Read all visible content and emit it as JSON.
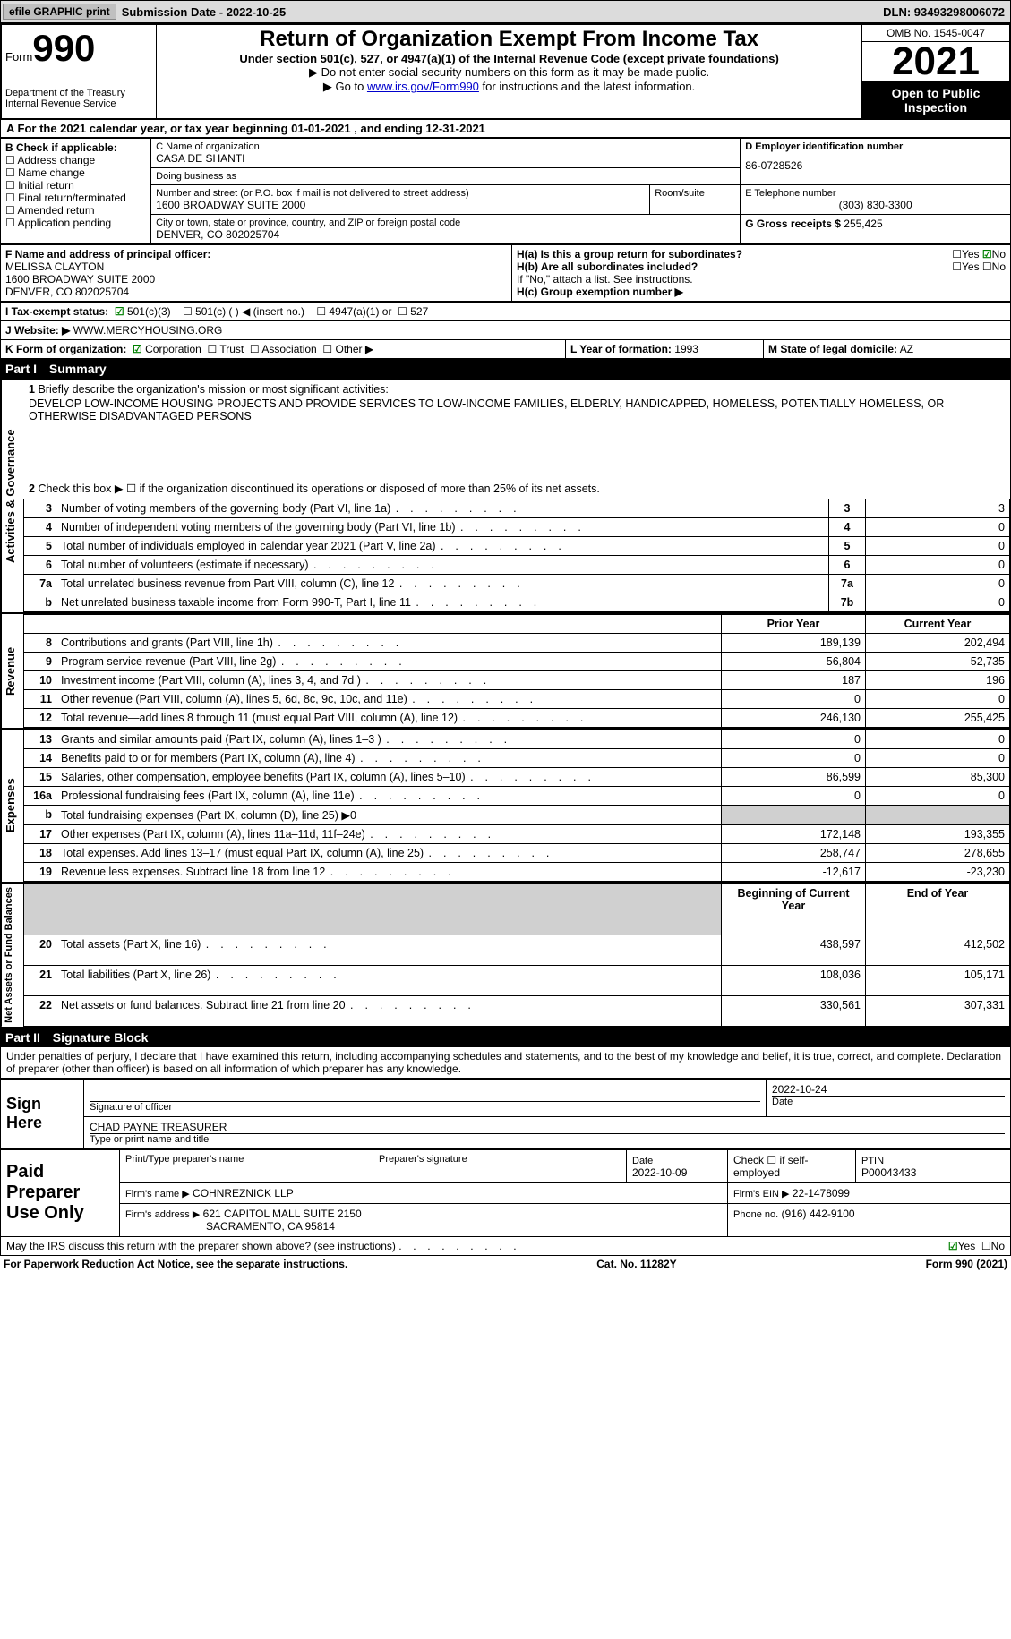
{
  "topbar": {
    "efile": "efile GRAPHIC print",
    "submission": "Submission Date - 2022-10-25",
    "dln": "DLN: 93493298006072"
  },
  "header": {
    "form_label": "Form",
    "form_num": "990",
    "dept": "Department of the Treasury\nInternal Revenue Service",
    "title": "Return of Organization Exempt From Income Tax",
    "subtitle": "Under section 501(c), 527, or 4947(a)(1) of the Internal Revenue Code (except private foundations)",
    "line1": "▶ Do not enter social security numbers on this form as it may be made public.",
    "line2_pre": "▶ Go to ",
    "line2_link": "www.irs.gov/Form990",
    "line2_post": " for instructions and the latest information.",
    "omb": "OMB No. 1545-0047",
    "year": "2021",
    "open": "Open to Public Inspection"
  },
  "section_a": "A For the 2021 calendar year, or tax year beginning 01-01-2021   , and ending 12-31-2021",
  "box_b": {
    "label": "B Check if applicable:",
    "items": [
      "Address change",
      "Name change",
      "Initial return",
      "Final return/terminated",
      "Amended return",
      "Application pending"
    ]
  },
  "box_c": {
    "name_label": "C Name of organization",
    "name": "CASA DE SHANTI",
    "dba_label": "Doing business as",
    "addr_label": "Number and street (or P.O. box if mail is not delivered to street address)",
    "room_label": "Room/suite",
    "addr": "1600 BROADWAY SUITE 2000",
    "city_label": "City or town, state or province, country, and ZIP or foreign postal code",
    "city": "DENVER, CO  802025704"
  },
  "box_d": {
    "label": "D Employer identification number",
    "value": "86-0728526"
  },
  "box_e": {
    "label": "E Telephone number",
    "value": "(303) 830-3300"
  },
  "box_g": {
    "label": "G Gross receipts $",
    "value": "255,425"
  },
  "box_f": {
    "label": "F Name and address of principal officer:",
    "name": "MELISSA CLAYTON",
    "addr1": "1600 BROADWAY SUITE 2000",
    "addr2": "DENVER, CO  802025704"
  },
  "box_h": {
    "ha": "H(a)  Is this a group return for subordinates?",
    "hb": "H(b)  Are all subordinates included?",
    "note": "If \"No,\" attach a list. See instructions.",
    "hc": "H(c)  Group exemption number ▶"
  },
  "tax_status": {
    "label": "I   Tax-exempt status:",
    "opt1": "501(c)(3)",
    "opt2": "501(c) (  ) ◀ (insert no.)",
    "opt3": "4947(a)(1) or",
    "opt4": "527"
  },
  "website": {
    "label": "J   Website: ▶",
    "value": "WWW.MERCYHOUSING.ORG"
  },
  "box_k": {
    "label": "K Form of organization:",
    "opts": [
      "Corporation",
      "Trust",
      "Association",
      "Other ▶"
    ]
  },
  "box_l": {
    "label": "L Year of formation:",
    "value": "1993"
  },
  "box_m": {
    "label": "M State of legal domicile:",
    "value": "AZ"
  },
  "part1": {
    "header_label": "Part I",
    "header_title": "Summary",
    "line1_label": "1",
    "line1": "Briefly describe the organization's mission or most significant activities:",
    "mission": "DEVELOP LOW-INCOME HOUSING PROJECTS AND PROVIDE SERVICES TO LOW-INCOME FAMILIES, ELDERLY, HANDICAPPED, HOMELESS, POTENTIALLY HOMELESS, OR OTHERWISE DISADVANTAGED PERSONS",
    "line2": "Check this box ▶ ☐ if the organization discontinued its operations or disposed of more than 25% of its net assets.",
    "rows_gov": [
      {
        "n": "3",
        "d": "Number of voting members of the governing body (Part VI, line 1a)",
        "r": "3",
        "v": "3"
      },
      {
        "n": "4",
        "d": "Number of independent voting members of the governing body (Part VI, line 1b)",
        "r": "4",
        "v": "0"
      },
      {
        "n": "5",
        "d": "Total number of individuals employed in calendar year 2021 (Part V, line 2a)",
        "r": "5",
        "v": "0"
      },
      {
        "n": "6",
        "d": "Total number of volunteers (estimate if necessary)",
        "r": "6",
        "v": "0"
      },
      {
        "n": "7a",
        "d": "Total unrelated business revenue from Part VIII, column (C), line 12",
        "r": "7a",
        "v": "0"
      },
      {
        "n": "b",
        "d": "Net unrelated business taxable income from Form 990-T, Part I, line 11",
        "r": "7b",
        "v": "0"
      }
    ],
    "prior_label": "Prior Year",
    "current_label": "Current Year",
    "rows_rev": [
      {
        "n": "8",
        "d": "Contributions and grants (Part VIII, line 1h)",
        "p": "189,139",
        "c": "202,494"
      },
      {
        "n": "9",
        "d": "Program service revenue (Part VIII, line 2g)",
        "p": "56,804",
        "c": "52,735"
      },
      {
        "n": "10",
        "d": "Investment income (Part VIII, column (A), lines 3, 4, and 7d )",
        "p": "187",
        "c": "196"
      },
      {
        "n": "11",
        "d": "Other revenue (Part VIII, column (A), lines 5, 6d, 8c, 9c, 10c, and 11e)",
        "p": "0",
        "c": "0"
      },
      {
        "n": "12",
        "d": "Total revenue—add lines 8 through 11 (must equal Part VIII, column (A), line 12)",
        "p": "246,130",
        "c": "255,425"
      }
    ],
    "rows_exp": [
      {
        "n": "13",
        "d": "Grants and similar amounts paid (Part IX, column (A), lines 1–3 )",
        "p": "0",
        "c": "0"
      },
      {
        "n": "14",
        "d": "Benefits paid to or for members (Part IX, column (A), line 4)",
        "p": "0",
        "c": "0"
      },
      {
        "n": "15",
        "d": "Salaries, other compensation, employee benefits (Part IX, column (A), lines 5–10)",
        "p": "86,599",
        "c": "85,300"
      },
      {
        "n": "16a",
        "d": "Professional fundraising fees (Part IX, column (A), line 11e)",
        "p": "0",
        "c": "0"
      },
      {
        "n": "b",
        "d": "Total fundraising expenses (Part IX, column (D), line 25) ▶0",
        "p": "",
        "c": ""
      },
      {
        "n": "17",
        "d": "Other expenses (Part IX, column (A), lines 11a–11d, 11f–24e)",
        "p": "172,148",
        "c": "193,355"
      },
      {
        "n": "18",
        "d": "Total expenses. Add lines 13–17 (must equal Part IX, column (A), line 25)",
        "p": "258,747",
        "c": "278,655"
      },
      {
        "n": "19",
        "d": "Revenue less expenses. Subtract line 18 from line 12",
        "p": "-12,617",
        "c": "-23,230"
      }
    ],
    "begin_label": "Beginning of Current Year",
    "end_label": "End of Year",
    "rows_net": [
      {
        "n": "20",
        "d": "Total assets (Part X, line 16)",
        "p": "438,597",
        "c": "412,502"
      },
      {
        "n": "21",
        "d": "Total liabilities (Part X, line 26)",
        "p": "108,036",
        "c": "105,171"
      },
      {
        "n": "22",
        "d": "Net assets or fund balances. Subtract line 21 from line 20",
        "p": "330,561",
        "c": "307,331"
      }
    ],
    "vlabels": {
      "gov": "Activities & Governance",
      "rev": "Revenue",
      "exp": "Expenses",
      "net": "Net Assets or Fund Balances"
    }
  },
  "part2": {
    "header_label": "Part II",
    "header_title": "Signature Block",
    "decl": "Under penalties of perjury, I declare that I have examined this return, including accompanying schedules and statements, and to the best of my knowledge and belief, it is true, correct, and complete. Declaration of preparer (other than officer) is based on all information of which preparer has any knowledge.",
    "sign_here": "Sign Here",
    "sig_officer": "Signature of officer",
    "sig_date": "2022-10-24",
    "date_label": "Date",
    "officer_name": "CHAD PAYNE  TREASURER",
    "name_label": "Type or print name and title",
    "paid": "Paid Preparer Use Only",
    "prep_name_label": "Print/Type preparer's name",
    "prep_sig_label": "Preparer's signature",
    "prep_date_label": "Date",
    "prep_date": "2022-10-09",
    "check_label": "Check ☐ if self-employed",
    "ptin_label": "PTIN",
    "ptin": "P00043433",
    "firm_name_label": "Firm's name    ▶",
    "firm_name": "COHNREZNICK LLP",
    "firm_ein_label": "Firm's EIN ▶",
    "firm_ein": "22-1478099",
    "firm_addr_label": "Firm's address ▶",
    "firm_addr1": "621 CAPITOL MALL SUITE 2150",
    "firm_addr2": "SACRAMENTO, CA  95814",
    "phone_label": "Phone no.",
    "phone": "(916) 442-9100",
    "discuss": "May the IRS discuss this return with the preparer shown above? (see instructions)",
    "yes": "Yes",
    "no": "No"
  },
  "footer": {
    "left": "For Paperwork Reduction Act Notice, see the separate instructions.",
    "mid": "Cat. No. 11282Y",
    "right": "Form 990 (2021)"
  }
}
